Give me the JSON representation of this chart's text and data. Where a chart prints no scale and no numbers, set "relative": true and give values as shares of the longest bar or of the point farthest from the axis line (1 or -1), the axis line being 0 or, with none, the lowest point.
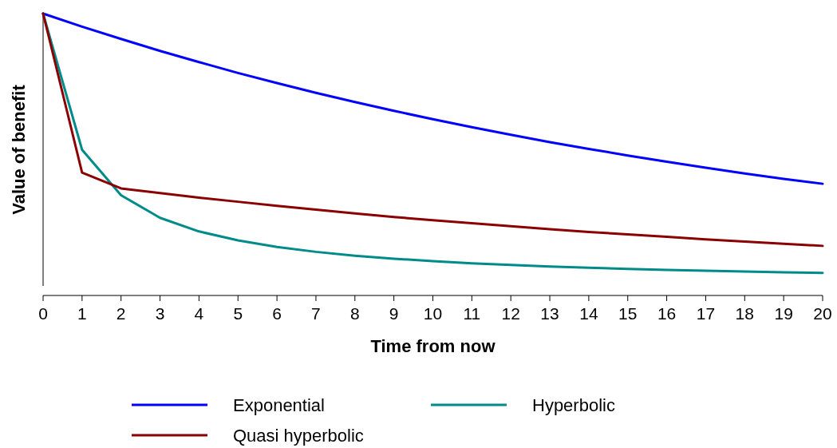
{
  "chart_data": {
    "type": "line",
    "relative": true,
    "xlabel": "Time from now",
    "ylabel": "Value of benefit",
    "x": [
      0,
      1,
      2,
      3,
      4,
      5,
      6,
      7,
      8,
      9,
      10,
      11,
      12,
      13,
      14,
      15,
      16,
      17,
      18,
      19,
      20
    ],
    "xlim": [
      0,
      20
    ],
    "xticks": [
      0,
      1,
      2,
      3,
      4,
      5,
      6,
      7,
      8,
      9,
      10,
      11,
      12,
      13,
      14,
      15,
      16,
      17,
      18,
      19,
      20
    ],
    "legend": "bottom",
    "grid": false,
    "line_style": "solid",
    "marker": "none",
    "series": [
      {
        "name": "Exponential",
        "color": "#0000ff",
        "values": [
          1,
          0.952,
          0.907,
          0.863,
          0.822,
          0.782,
          0.745,
          0.709,
          0.675,
          0.643,
          0.612,
          0.583,
          0.555,
          0.528,
          0.503,
          0.479,
          0.456,
          0.434,
          0.413,
          0.393,
          0.375
        ]
      },
      {
        "name": "Hyperbolic",
        "color": "#008b8b",
        "values": [
          1,
          0.5,
          0.333,
          0.25,
          0.2,
          0.167,
          0.143,
          0.125,
          0.111,
          0.1,
          0.091,
          0.083,
          0.077,
          0.071,
          0.067,
          0.062,
          0.059,
          0.056,
          0.053,
          0.05,
          0.048
        ]
      },
      {
        "name": "Quasi hyperbolic",
        "color": "#8b0000",
        "values": [
          1,
          0.416,
          0.358,
          0.341,
          0.324,
          0.309,
          0.294,
          0.28,
          0.266,
          0.253,
          0.241,
          0.23,
          0.219,
          0.208,
          0.198,
          0.189,
          0.18,
          0.171,
          0.163,
          0.155,
          0.147
        ]
      }
    ]
  }
}
